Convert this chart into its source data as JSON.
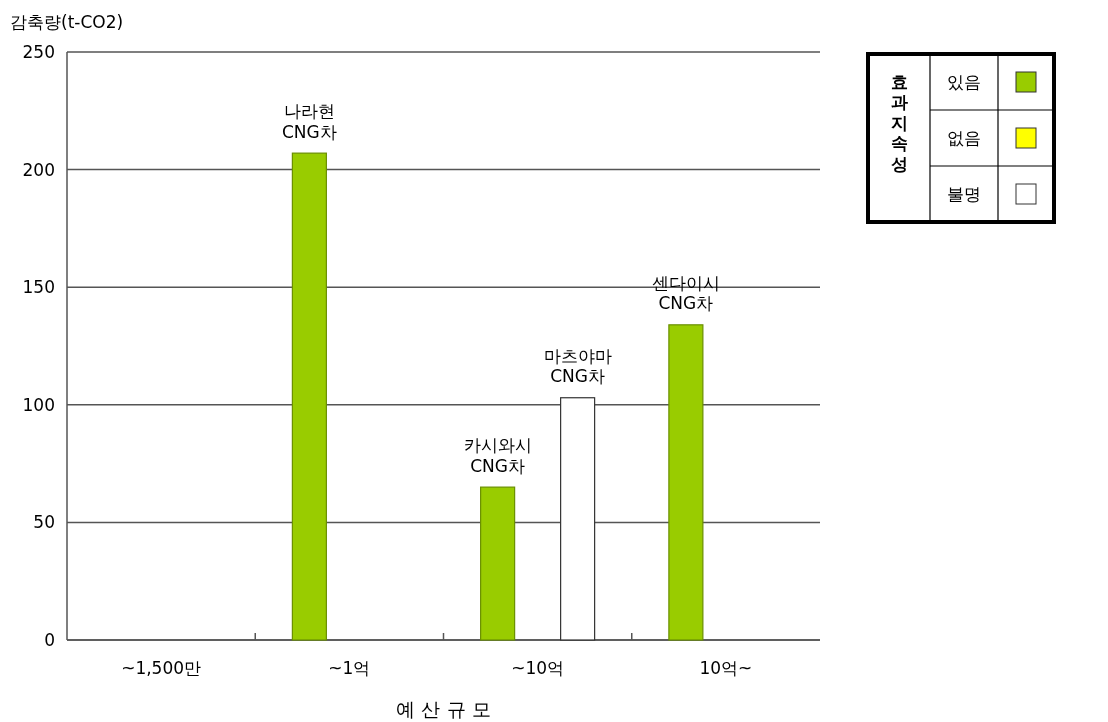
{
  "chart_data": {
    "type": "bar",
    "ylabel": "감축량(t-CO2)",
    "xlabel": "예 산 규 모",
    "legend_title": "효과지속성",
    "categories": [
      "~1,500만",
      "~1억",
      "~10억",
      "10억~"
    ],
    "series": [
      {
        "name": "있음",
        "color": "#99cc00",
        "values": [
          null,
          207,
          65,
          134
        ],
        "value_labels": [
          null,
          "나라현\nCNG차",
          "카시와시\nCNG차",
          "센다이시\nCNG차"
        ]
      },
      {
        "name": "없음",
        "color": "#ffff00",
        "values": [
          null,
          null,
          null,
          null
        ]
      },
      {
        "name": "불명",
        "color": "#ffffff",
        "values": [
          null,
          null,
          103,
          null
        ],
        "value_labels": [
          null,
          null,
          "마츠야마\nCNG차",
          null
        ]
      }
    ],
    "ylim": [
      0,
      250
    ],
    "yticks": [
      0,
      50,
      100,
      150,
      200,
      250
    ],
    "grid": "y",
    "legend": "top right"
  }
}
